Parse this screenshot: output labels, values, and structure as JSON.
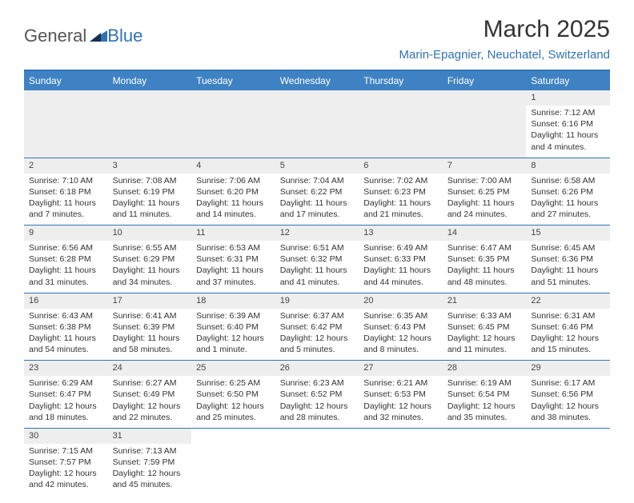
{
  "logo": {
    "general": "General",
    "blue": "Blue"
  },
  "header": {
    "title": "March 2025",
    "subtitle": "Marin-Epagnier, Neuchatel, Switzerland"
  },
  "colors": {
    "header_bar": "#3f82c3",
    "rule": "#2f73b7",
    "day_strip": "#eeeeee"
  },
  "weekdays": [
    "Sunday",
    "Monday",
    "Tuesday",
    "Wednesday",
    "Thursday",
    "Friday",
    "Saturday"
  ],
  "weeks": [
    [
      null,
      null,
      null,
      null,
      null,
      null,
      {
        "n": "1",
        "sr": "Sunrise: 7:12 AM",
        "ss": "Sunset: 6:16 PM",
        "dl": "Daylight: 11 hours and 4 minutes."
      }
    ],
    [
      {
        "n": "2",
        "sr": "Sunrise: 7:10 AM",
        "ss": "Sunset: 6:18 PM",
        "dl": "Daylight: 11 hours and 7 minutes."
      },
      {
        "n": "3",
        "sr": "Sunrise: 7:08 AM",
        "ss": "Sunset: 6:19 PM",
        "dl": "Daylight: 11 hours and 11 minutes."
      },
      {
        "n": "4",
        "sr": "Sunrise: 7:06 AM",
        "ss": "Sunset: 6:20 PM",
        "dl": "Daylight: 11 hours and 14 minutes."
      },
      {
        "n": "5",
        "sr": "Sunrise: 7:04 AM",
        "ss": "Sunset: 6:22 PM",
        "dl": "Daylight: 11 hours and 17 minutes."
      },
      {
        "n": "6",
        "sr": "Sunrise: 7:02 AM",
        "ss": "Sunset: 6:23 PM",
        "dl": "Daylight: 11 hours and 21 minutes."
      },
      {
        "n": "7",
        "sr": "Sunrise: 7:00 AM",
        "ss": "Sunset: 6:25 PM",
        "dl": "Daylight: 11 hours and 24 minutes."
      },
      {
        "n": "8",
        "sr": "Sunrise: 6:58 AM",
        "ss": "Sunset: 6:26 PM",
        "dl": "Daylight: 11 hours and 27 minutes."
      }
    ],
    [
      {
        "n": "9",
        "sr": "Sunrise: 6:56 AM",
        "ss": "Sunset: 6:28 PM",
        "dl": "Daylight: 11 hours and 31 minutes."
      },
      {
        "n": "10",
        "sr": "Sunrise: 6:55 AM",
        "ss": "Sunset: 6:29 PM",
        "dl": "Daylight: 11 hours and 34 minutes."
      },
      {
        "n": "11",
        "sr": "Sunrise: 6:53 AM",
        "ss": "Sunset: 6:31 PM",
        "dl": "Daylight: 11 hours and 37 minutes."
      },
      {
        "n": "12",
        "sr": "Sunrise: 6:51 AM",
        "ss": "Sunset: 6:32 PM",
        "dl": "Daylight: 11 hours and 41 minutes."
      },
      {
        "n": "13",
        "sr": "Sunrise: 6:49 AM",
        "ss": "Sunset: 6:33 PM",
        "dl": "Daylight: 11 hours and 44 minutes."
      },
      {
        "n": "14",
        "sr": "Sunrise: 6:47 AM",
        "ss": "Sunset: 6:35 PM",
        "dl": "Daylight: 11 hours and 48 minutes."
      },
      {
        "n": "15",
        "sr": "Sunrise: 6:45 AM",
        "ss": "Sunset: 6:36 PM",
        "dl": "Daylight: 11 hours and 51 minutes."
      }
    ],
    [
      {
        "n": "16",
        "sr": "Sunrise: 6:43 AM",
        "ss": "Sunset: 6:38 PM",
        "dl": "Daylight: 11 hours and 54 minutes."
      },
      {
        "n": "17",
        "sr": "Sunrise: 6:41 AM",
        "ss": "Sunset: 6:39 PM",
        "dl": "Daylight: 11 hours and 58 minutes."
      },
      {
        "n": "18",
        "sr": "Sunrise: 6:39 AM",
        "ss": "Sunset: 6:40 PM",
        "dl": "Daylight: 12 hours and 1 minute."
      },
      {
        "n": "19",
        "sr": "Sunrise: 6:37 AM",
        "ss": "Sunset: 6:42 PM",
        "dl": "Daylight: 12 hours and 5 minutes."
      },
      {
        "n": "20",
        "sr": "Sunrise: 6:35 AM",
        "ss": "Sunset: 6:43 PM",
        "dl": "Daylight: 12 hours and 8 minutes."
      },
      {
        "n": "21",
        "sr": "Sunrise: 6:33 AM",
        "ss": "Sunset: 6:45 PM",
        "dl": "Daylight: 12 hours and 11 minutes."
      },
      {
        "n": "22",
        "sr": "Sunrise: 6:31 AM",
        "ss": "Sunset: 6:46 PM",
        "dl": "Daylight: 12 hours and 15 minutes."
      }
    ],
    [
      {
        "n": "23",
        "sr": "Sunrise: 6:29 AM",
        "ss": "Sunset: 6:47 PM",
        "dl": "Daylight: 12 hours and 18 minutes."
      },
      {
        "n": "24",
        "sr": "Sunrise: 6:27 AM",
        "ss": "Sunset: 6:49 PM",
        "dl": "Daylight: 12 hours and 22 minutes."
      },
      {
        "n": "25",
        "sr": "Sunrise: 6:25 AM",
        "ss": "Sunset: 6:50 PM",
        "dl": "Daylight: 12 hours and 25 minutes."
      },
      {
        "n": "26",
        "sr": "Sunrise: 6:23 AM",
        "ss": "Sunset: 6:52 PM",
        "dl": "Daylight: 12 hours and 28 minutes."
      },
      {
        "n": "27",
        "sr": "Sunrise: 6:21 AM",
        "ss": "Sunset: 6:53 PM",
        "dl": "Daylight: 12 hours and 32 minutes."
      },
      {
        "n": "28",
        "sr": "Sunrise: 6:19 AM",
        "ss": "Sunset: 6:54 PM",
        "dl": "Daylight: 12 hours and 35 minutes."
      },
      {
        "n": "29",
        "sr": "Sunrise: 6:17 AM",
        "ss": "Sunset: 6:56 PM",
        "dl": "Daylight: 12 hours and 38 minutes."
      }
    ],
    [
      {
        "n": "30",
        "sr": "Sunrise: 7:15 AM",
        "ss": "Sunset: 7:57 PM",
        "dl": "Daylight: 12 hours and 42 minutes."
      },
      {
        "n": "31",
        "sr": "Sunrise: 7:13 AM",
        "ss": "Sunset: 7:59 PM",
        "dl": "Daylight: 12 hours and 45 minutes."
      },
      null,
      null,
      null,
      null,
      null
    ]
  ]
}
